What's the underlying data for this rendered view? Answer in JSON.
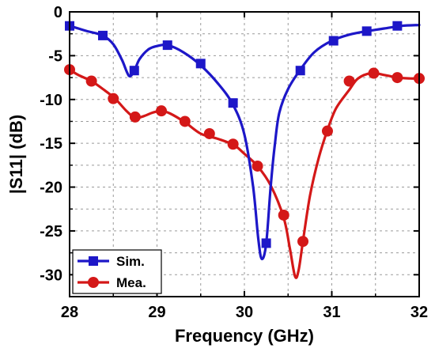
{
  "chart_data": {
    "type": "line",
    "title": "",
    "xlabel": "Frequency (GHz)",
    "ylabel": "|S11| (dB)",
    "xlim": [
      28,
      32
    ],
    "ylim": [
      -32.5,
      0
    ],
    "xticks": [
      28,
      29,
      30,
      31,
      32
    ],
    "xtick_labels": [
      "28",
      "29",
      "30",
      "31",
      "32"
    ],
    "yticks": [
      0,
      -5,
      -10,
      -15,
      -20,
      -25,
      -30
    ],
    "ytick_labels": [
      "0",
      "-5",
      "-10",
      "-15",
      "-20",
      "-25",
      "-30"
    ],
    "grid": true,
    "legend": {
      "placement": "bottom-left",
      "entries": [
        "Sim.",
        "Mea."
      ]
    },
    "series": [
      {
        "name": "Sim.",
        "color": "#1d17c8",
        "marker": "square",
        "x": [
          28.0,
          28.1,
          28.2,
          28.38,
          28.5,
          28.6,
          28.68,
          28.74,
          28.8,
          28.9,
          29.0,
          29.12,
          29.3,
          29.5,
          29.7,
          29.87,
          30.0,
          30.1,
          30.16,
          30.2,
          30.25,
          30.3,
          30.35,
          30.4,
          30.5,
          30.64,
          30.8,
          31.0,
          31.2,
          31.4,
          31.6,
          31.8,
          32.0
        ],
        "y": [
          -1.6,
          -1.9,
          -2.2,
          -2.7,
          -3.7,
          -5.5,
          -7.3,
          -6.7,
          -5.4,
          -4.3,
          -3.9,
          -3.8,
          -4.6,
          -6.1,
          -8.2,
          -10.6,
          -14.0,
          -20.0,
          -26.0,
          -28.2,
          -26.4,
          -20.0,
          -15.0,
          -11.5,
          -8.8,
          -6.6,
          -4.6,
          -3.3,
          -2.6,
          -2.2,
          -1.9,
          -1.6,
          -1.5
        ]
      },
      {
        "name": "Mea.",
        "color": "#d41818",
        "marker": "circle",
        "x": [
          28.0,
          28.1,
          28.25,
          28.38,
          28.52,
          28.65,
          28.75,
          28.85,
          28.95,
          29.05,
          29.15,
          29.32,
          29.5,
          29.7,
          29.88,
          30.0,
          30.15,
          30.3,
          30.45,
          30.52,
          30.58,
          30.62,
          30.67,
          30.75,
          30.85,
          30.95,
          31.05,
          31.2,
          31.3,
          31.45,
          31.6,
          31.75,
          31.9,
          32.0
        ],
        "y": [
          -6.6,
          -7.2,
          -7.9,
          -8.8,
          -9.9,
          -11.3,
          -12.1,
          -11.9,
          -11.5,
          -11.3,
          -11.6,
          -12.6,
          -13.9,
          -14.5,
          -15.2,
          -16.2,
          -17.6,
          -19.8,
          -23.5,
          -27.0,
          -30.2,
          -29.5,
          -26.2,
          -21.0,
          -16.7,
          -13.5,
          -11.0,
          -8.9,
          -7.6,
          -7.0,
          -7.2,
          -7.5,
          -7.6,
          -7.6
        ]
      }
    ],
    "marker_points": [
      {
        "series": 0,
        "x": [
          28.0,
          28.38,
          28.74,
          29.12,
          29.5,
          29.87,
          30.25,
          30.64,
          31.02,
          31.4,
          31.75
        ],
        "y": [
          -1.6,
          -2.7,
          -6.7,
          -3.8,
          -5.9,
          -10.4,
          -26.4,
          -6.7,
          -3.3,
          -2.2,
          -1.6
        ]
      },
      {
        "series": 1,
        "x": [
          28.0,
          28.25,
          28.5,
          28.75,
          29.05,
          29.32,
          29.6,
          29.87,
          30.15,
          30.45,
          30.67,
          30.95,
          31.2,
          31.48,
          31.75,
          32.0
        ],
        "y": [
          -6.6,
          -7.9,
          -9.9,
          -12.0,
          -11.3,
          -12.5,
          -13.9,
          -15.1,
          -17.6,
          -23.2,
          -26.2,
          -13.6,
          -7.9,
          -7.0,
          -7.5,
          -7.6
        ]
      }
    ]
  }
}
